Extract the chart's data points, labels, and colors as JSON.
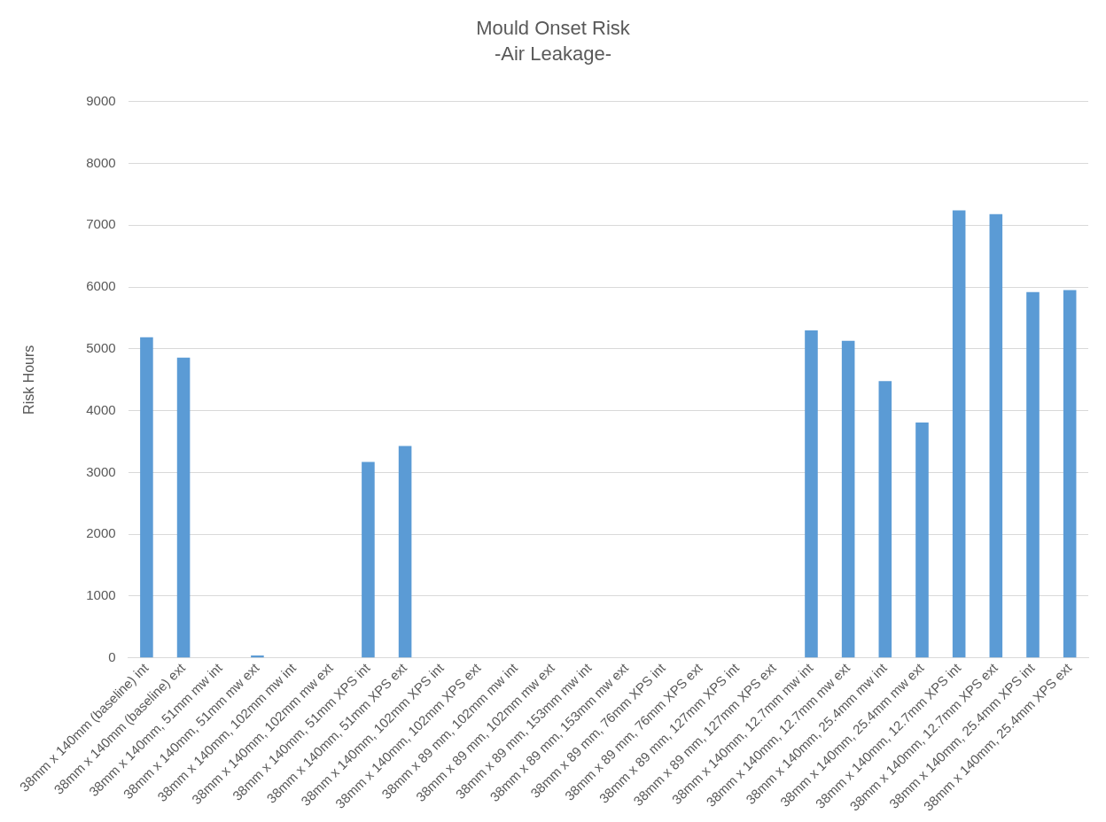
{
  "chart_data": {
    "type": "bar",
    "title": "Mould Onset Risk",
    "subtitle": "-Air Leakage-",
    "ylabel": "Risk Hours",
    "categories": [
      "38mm x 140mm (baseline) int",
      "38mm x 140mm (baseline) ext",
      "38mm x 140mm, 51mm mw int",
      "38mm x 140mm, 51mm mw ext",
      "38mm x 140mm, 102mm mw int",
      "38mm x 140mm, 102mm mw ext",
      "38mm x 140mm, 51mm XPS int",
      "38mm x 140mm, 51mm XPS ext",
      "38mm x 140mm, 102mm XPS int",
      "38mm x 140mm, 102mm XPS ext",
      "38mm x 89 mm, 102mm mw int",
      "38mm x 89 mm, 102mm mw ext",
      "38mm x 89 mm, 153mm mw int",
      "38mm x 89 mm, 153mm mw ext",
      "38mm x 89 mm, 76mm XPS int",
      "38mm x 89 mm, 76mm XPS ext",
      "38mm x 89 mm, 127mm XPS int",
      "38mm x 89 mm, 127mm XPS ext",
      "38mm x 140mm, 12.7mm mw int",
      "38mm x 140mm, 12.7mm mw ext",
      "38mm x 140mm, 25.4mm mw int",
      "38mm x 140mm, 25.4mm mw ext",
      "38mm x 140mm, 12.7mm XPS int",
      "38mm x 140mm, 12.7mm XPS ext",
      "38mm x 140mm, 25.4mm XPS int",
      "38mm x 140mm, 25.4mm XPS ext"
    ],
    "values": [
      5190,
      4860,
      0,
      40,
      0,
      0,
      3170,
      3430,
      0,
      0,
      0,
      0,
      0,
      0,
      0,
      0,
      0,
      0,
      5300,
      5130,
      4480,
      3810,
      7240,
      7180,
      5920,
      5950
    ],
    "color": "#5b9bd5",
    "ylim": [
      0,
      9000
    ],
    "yticks": [
      0,
      1000,
      2000,
      3000,
      4000,
      5000,
      6000,
      7000,
      8000,
      9000
    ],
    "grid": "y"
  }
}
